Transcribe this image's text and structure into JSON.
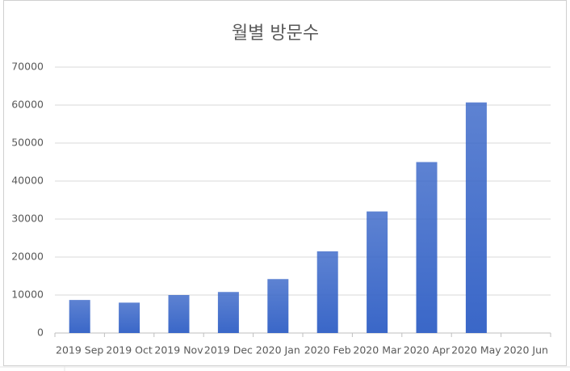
{
  "chart_data": {
    "type": "bar",
    "title": "월별 방문수",
    "categories": [
      "2019 Sep",
      "2019 Oct",
      "2019 Nov",
      "2019 Dec",
      "2020 Jan",
      "2020 Feb",
      "2020 Mar",
      "2020 Apr",
      "2020 May",
      "2020 Jun"
    ],
    "values": [
      8700,
      8000,
      10000,
      10800,
      14200,
      21500,
      32000,
      45000,
      60700,
      null
    ],
    "color": "#3a67c8",
    "ylim": [
      0,
      70000
    ],
    "yticks": [
      0,
      10000,
      20000,
      30000,
      40000,
      50000,
      60000,
      70000
    ],
    "grid": true
  }
}
